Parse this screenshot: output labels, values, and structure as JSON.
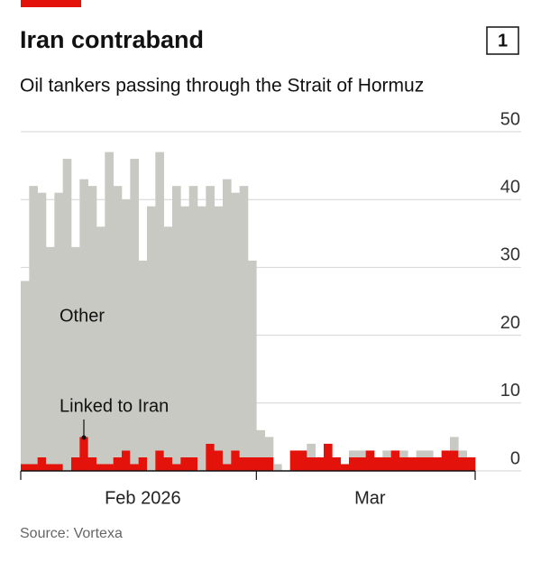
{
  "chart_data": {
    "type": "stacked_bar",
    "title": "Iran contraband",
    "chart_number": "1",
    "subtitle": "Oil tankers passing through the Strait of Hormuz",
    "source": "Source: Vortexa",
    "categories": [
      null,
      null,
      null,
      null,
      null,
      null,
      null,
      null,
      null,
      null,
      null,
      null,
      null,
      null,
      "Feb 2026",
      null,
      null,
      null,
      null,
      null,
      null,
      null,
      null,
      null,
      null,
      null,
      null,
      null,
      null,
      null,
      null,
      null,
      null,
      null,
      null,
      null,
      null,
      null,
      null,
      null,
      null,
      "Mar",
      null,
      null,
      null,
      null,
      null,
      null,
      null,
      null,
      null,
      null,
      null,
      null
    ],
    "series": [
      {
        "name": "Linked to Iran",
        "color": "#e3120b",
        "values": [
          1,
          1,
          2,
          1,
          1,
          0,
          2,
          5,
          2,
          1,
          1,
          2,
          3,
          1,
          2,
          0,
          3,
          2,
          1,
          2,
          2,
          0,
          4,
          3,
          1,
          3,
          2,
          2,
          2,
          2,
          0,
          0,
          3,
          3,
          2,
          2,
          4,
          2,
          1,
          2,
          2,
          3,
          2,
          2,
          3,
          2,
          2,
          2,
          2,
          2,
          3,
          3,
          2,
          2
        ]
      },
      {
        "name": "Other",
        "color": "#c9c9c3",
        "values": [
          27,
          41,
          39,
          32,
          40,
          46,
          31,
          38,
          40,
          35,
          46,
          40,
          37,
          45,
          29,
          39,
          44,
          34,
          41,
          37,
          40,
          39,
          38,
          36,
          42,
          38,
          40,
          29,
          4,
          3,
          1,
          0,
          0,
          0,
          2,
          0,
          0,
          0,
          0,
          1,
          1,
          0,
          0,
          1,
          0,
          1,
          0,
          1,
          1,
          0,
          0,
          2,
          1,
          0
        ]
      }
    ],
    "ylim": [
      0,
      50
    ],
    "yticks": [
      0,
      10,
      20,
      30,
      40,
      50
    ],
    "grid": true
  }
}
